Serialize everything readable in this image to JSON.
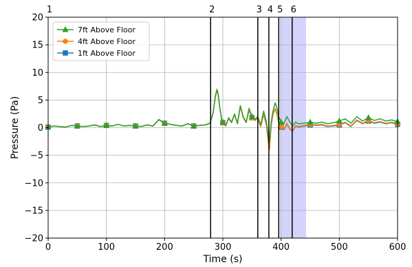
{
  "chart_data": {
    "type": "line",
    "xlabel": "Time (s)",
    "ylabel": "Pressure (Pa)",
    "xlim": [
      0,
      600
    ],
    "ylim": [
      -20,
      20
    ],
    "xticks": [
      "0",
      "100",
      "200",
      "300",
      "400",
      "500",
      "600"
    ],
    "yticks": [
      "−20",
      "−15",
      "−10",
      "−5",
      "0",
      "5",
      "10",
      "15",
      "20"
    ],
    "grid": true,
    "legend_position": "top-left",
    "shaded_region": {
      "x_start": 398,
      "x_end": 443,
      "color": "#c8c8fa"
    },
    "events": [
      {
        "label": "1",
        "x": 0
      },
      {
        "label": "2",
        "x": 279
      },
      {
        "label": "3",
        "x": 360
      },
      {
        "label": "4",
        "x": 379
      },
      {
        "label": "5",
        "x": 396
      },
      {
        "label": "6",
        "x": 419
      }
    ],
    "series": [
      {
        "name": "7ft Above Floor",
        "color": "#2ca02c",
        "marker": "triangle",
        "marker_x": [
          0,
          50,
          100,
          150,
          200,
          250,
          300,
          350,
          400,
          450,
          500,
          550,
          600
        ],
        "x": [
          0,
          10,
          20,
          30,
          40,
          50,
          60,
          70,
          80,
          90,
          100,
          110,
          120,
          130,
          140,
          150,
          160,
          170,
          180,
          190,
          200,
          210,
          220,
          230,
          240,
          250,
          260,
          270,
          278,
          283,
          287,
          290,
          292,
          295,
          298,
          300,
          305,
          310,
          315,
          320,
          325,
          330,
          335,
          340,
          345,
          350,
          355,
          360,
          365,
          370,
          375,
          378,
          380,
          383,
          386,
          390,
          393,
          396,
          400,
          405,
          410,
          415,
          420,
          425,
          430,
          440,
          450,
          460,
          470,
          480,
          490,
          500,
          510,
          520,
          530,
          540,
          550,
          560,
          570,
          580,
          590,
          600
        ],
        "y": [
          0.1,
          0.3,
          0.2,
          0.1,
          0.4,
          0.3,
          0.2,
          0.3,
          0.5,
          0.2,
          0.4,
          0.3,
          0.6,
          0.3,
          0.4,
          0.3,
          0.2,
          0.5,
          0.3,
          1.5,
          0.8,
          0.6,
          0.4,
          0.3,
          0.7,
          0.3,
          0.4,
          0.5,
          0.8,
          2.5,
          5.5,
          6.8,
          6.0,
          3.5,
          1.5,
          1.0,
          0.4,
          1.8,
          1.0,
          2.5,
          0.8,
          4.0,
          2.0,
          1.0,
          3.5,
          2.0,
          1.5,
          2.0,
          0.5,
          3.0,
          1.0,
          -1.5,
          -2.5,
          1.0,
          3.0,
          4.5,
          3.5,
          2.0,
          1.0,
          0.8,
          2.0,
          1.0,
          0.3,
          1.0,
          0.7,
          0.8,
          1.0,
          0.8,
          1.0,
          0.7,
          0.9,
          1.2,
          1.6,
          0.8,
          2.0,
          1.2,
          1.8,
          1.3,
          1.6,
          1.2,
          1.4,
          1.1
        ]
      },
      {
        "name": "4ft Above Floor",
        "color": "#ff7f0e",
        "marker": "circle",
        "marker_x": [
          0,
          50,
          100,
          150,
          200,
          250,
          300,
          350,
          400,
          450,
          500,
          550,
          600
        ],
        "x": [
          0,
          10,
          20,
          30,
          40,
          50,
          60,
          70,
          80,
          90,
          100,
          110,
          120,
          130,
          140,
          150,
          160,
          170,
          180,
          190,
          200,
          210,
          220,
          230,
          240,
          250,
          260,
          270,
          278,
          283,
          287,
          290,
          292,
          295,
          298,
          300,
          305,
          310,
          315,
          320,
          325,
          330,
          335,
          340,
          345,
          350,
          355,
          360,
          365,
          370,
          375,
          378,
          380,
          383,
          386,
          390,
          393,
          396,
          400,
          405,
          410,
          415,
          420,
          425,
          430,
          440,
          450,
          460,
          470,
          480,
          490,
          500,
          510,
          520,
          530,
          540,
          550,
          560,
          570,
          580,
          590,
          600
        ],
        "y": [
          0.1,
          0.3,
          0.2,
          0.1,
          0.4,
          0.3,
          0.2,
          0.3,
          0.5,
          0.2,
          0.4,
          0.3,
          0.6,
          0.3,
          0.4,
          0.3,
          0.2,
          0.5,
          0.3,
          1.4,
          0.8,
          0.6,
          0.4,
          0.3,
          0.7,
          0.3,
          0.4,
          0.5,
          0.8,
          2.6,
          5.8,
          7.0,
          6.1,
          3.4,
          1.4,
          0.9,
          0.3,
          1.7,
          0.9,
          2.4,
          0.7,
          3.8,
          1.8,
          0.9,
          3.2,
          1.8,
          1.3,
          1.7,
          0.2,
          2.5,
          0.5,
          -2.5,
          -3.8,
          0.5,
          2.5,
          3.5,
          2.5,
          1.0,
          0.2,
          -0.3,
          0.8,
          -0.2,
          -0.5,
          0.4,
          0.2,
          0.4,
          0.6,
          0.5,
          0.6,
          0.3,
          0.4,
          0.6,
          1.0,
          0.3,
          1.4,
          0.8,
          1.3,
          0.9,
          1.1,
          0.8,
          1.0,
          0.7
        ]
      },
      {
        "name": "1ft Above Floor",
        "color": "#1f77b4",
        "marker": "square",
        "marker_x": [
          0,
          50,
          100,
          150,
          200,
          250,
          300,
          350,
          400,
          450,
          500,
          550,
          600
        ],
        "x": [
          0,
          10,
          20,
          30,
          40,
          50,
          60,
          70,
          80,
          90,
          100,
          110,
          120,
          130,
          140,
          150,
          160,
          170,
          180,
          190,
          200,
          210,
          220,
          230,
          240,
          250,
          260,
          270,
          278,
          283,
          287,
          290,
          292,
          295,
          298,
          300,
          305,
          310,
          315,
          320,
          325,
          330,
          335,
          340,
          345,
          350,
          355,
          360,
          365,
          370,
          375,
          378,
          380,
          383,
          386,
          390,
          393,
          396,
          400,
          405,
          410,
          415,
          420,
          425,
          430,
          440,
          450,
          460,
          470,
          480,
          490,
          500,
          510,
          520,
          530,
          540,
          550,
          560,
          570,
          580,
          590,
          600
        ],
        "y": [
          0.1,
          0.3,
          0.2,
          0.1,
          0.4,
          0.3,
          0.2,
          0.3,
          0.5,
          0.2,
          0.4,
          0.3,
          0.6,
          0.3,
          0.4,
          0.3,
          0.2,
          0.5,
          0.3,
          1.4,
          0.8,
          0.6,
          0.4,
          0.3,
          0.7,
          0.3,
          0.4,
          0.5,
          0.8,
          2.5,
          5.6,
          6.9,
          6.0,
          3.4,
          1.4,
          0.9,
          0.3,
          1.7,
          0.9,
          2.4,
          0.7,
          3.8,
          1.8,
          0.9,
          3.2,
          1.8,
          1.3,
          1.7,
          0.2,
          2.4,
          0.4,
          -2.6,
          -3.9,
          0.4,
          2.4,
          3.4,
          2.4,
          0.9,
          0.1,
          -0.4,
          0.7,
          -0.3,
          -0.6,
          0.3,
          0.1,
          0.3,
          0.5,
          0.4,
          0.5,
          0.2,
          0.3,
          0.5,
          0.9,
          0.2,
          1.3,
          0.7,
          1.2,
          0.8,
          1.0,
          0.7,
          0.9,
          0.6
        ]
      }
    ]
  }
}
